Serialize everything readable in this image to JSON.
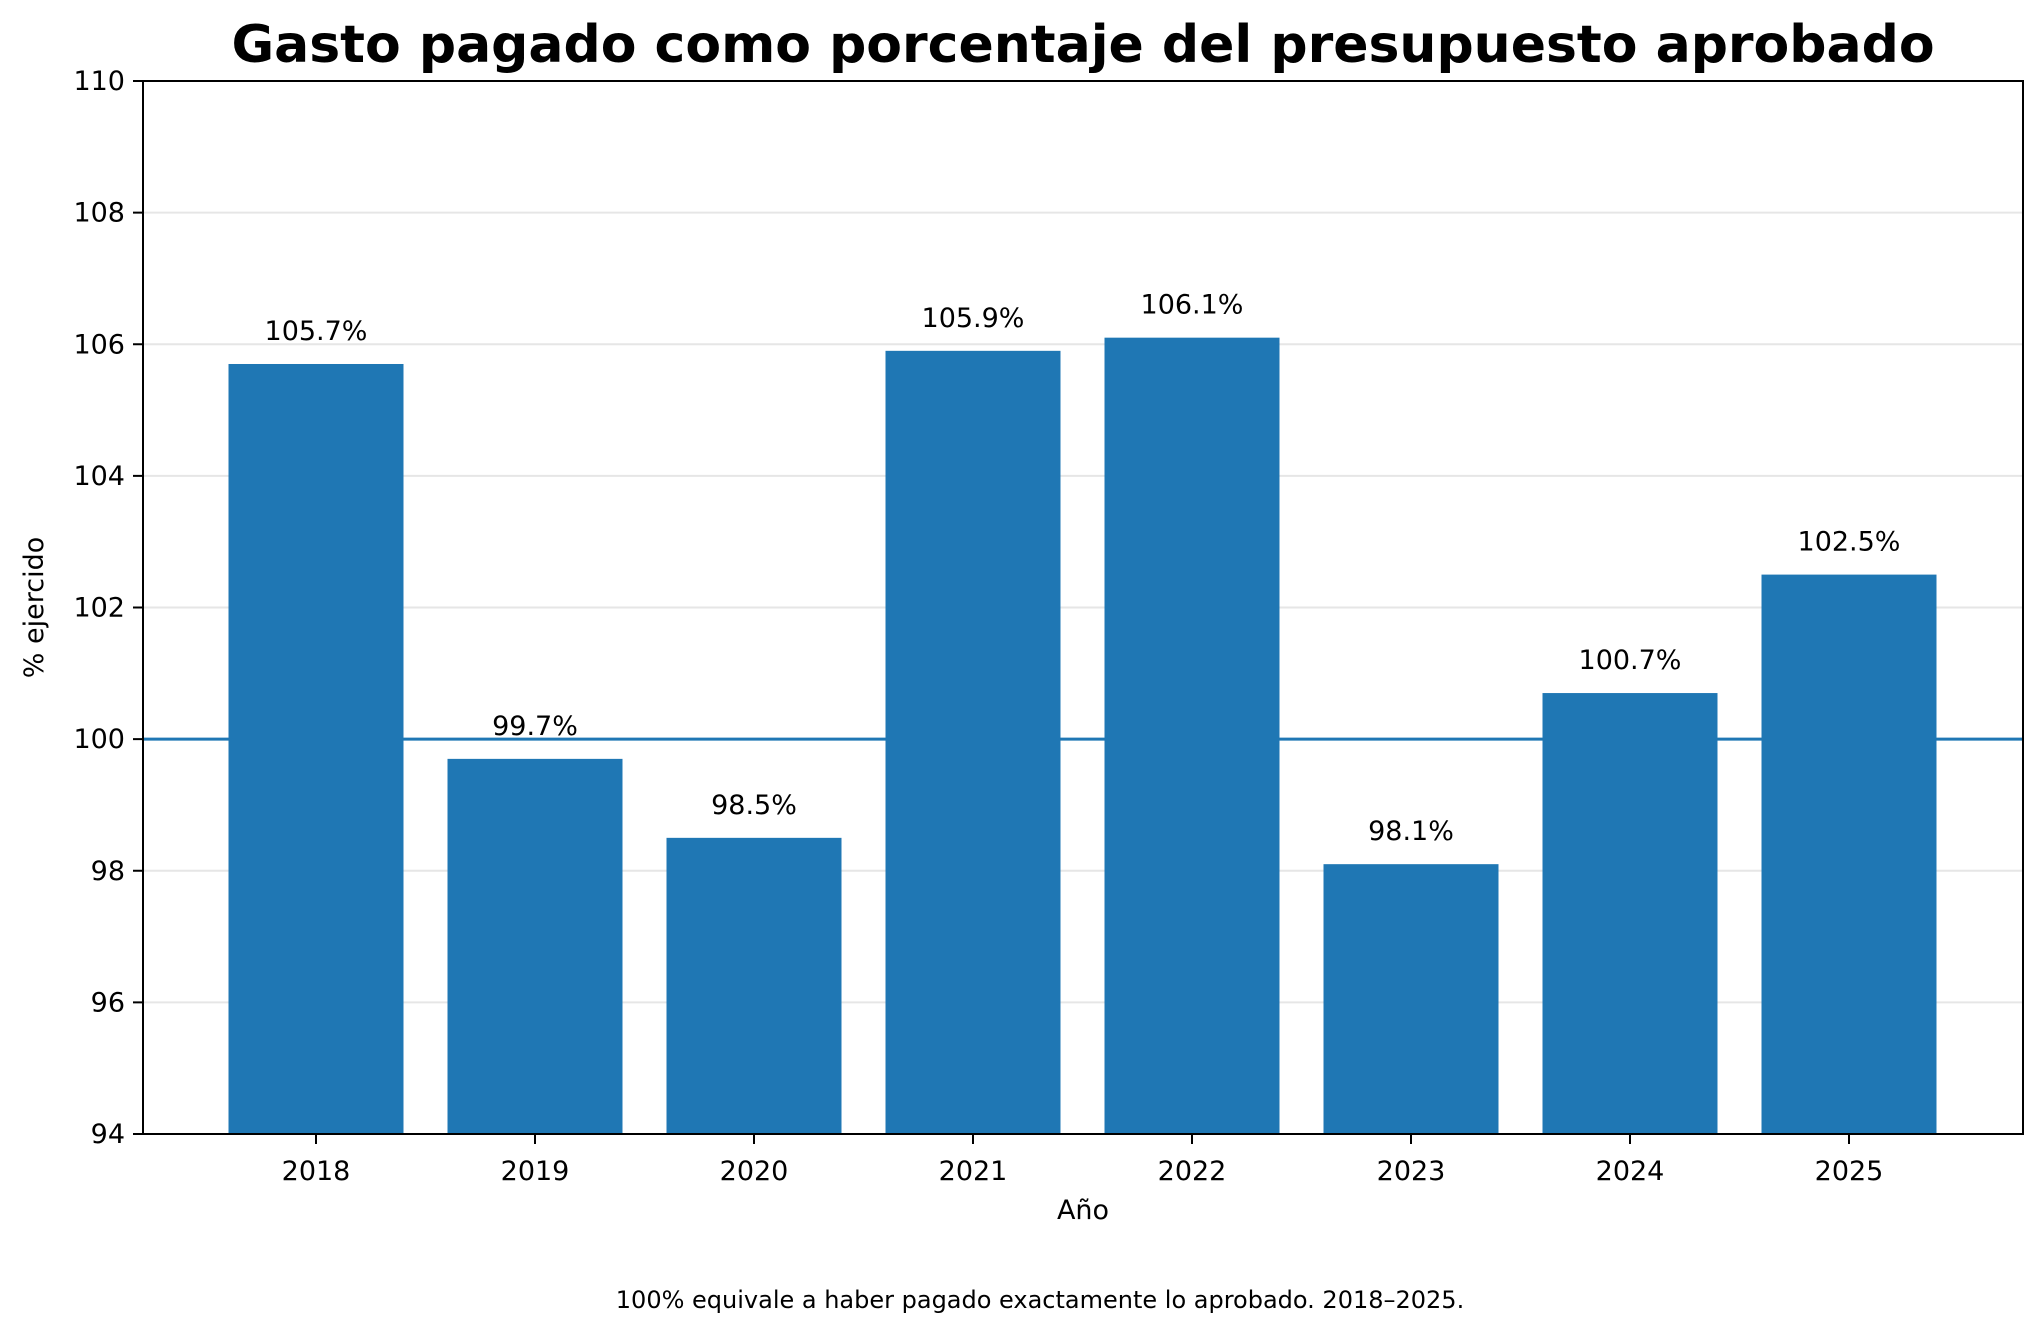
{
  "chart_data": {
    "type": "bar",
    "title": "Gasto pagado como porcentaje del presupuesto aprobado",
    "xlabel": "Año",
    "ylabel": "% ejercido",
    "categories": [
      "2018",
      "2019",
      "2020",
      "2021",
      "2022",
      "2023",
      "2024",
      "2025"
    ],
    "values": [
      105.7,
      99.7,
      98.5,
      105.9,
      106.1,
      98.1,
      100.7,
      102.5
    ],
    "value_labels": [
      "105.7%",
      "99.7%",
      "98.5%",
      "105.9%",
      "106.1%",
      "98.1%",
      "100.7%",
      "102.5%"
    ],
    "ylim": [
      94,
      110
    ],
    "yticks": [
      94,
      96,
      98,
      100,
      102,
      104,
      106,
      108,
      110
    ],
    "reference_line": 100,
    "grid": "horizontal",
    "bar_color": "#1f77b4",
    "reference_line_color": "#1f77b4",
    "caption": "100% equivale a haber pagado exactamente lo aprobado. 2018–2025."
  }
}
